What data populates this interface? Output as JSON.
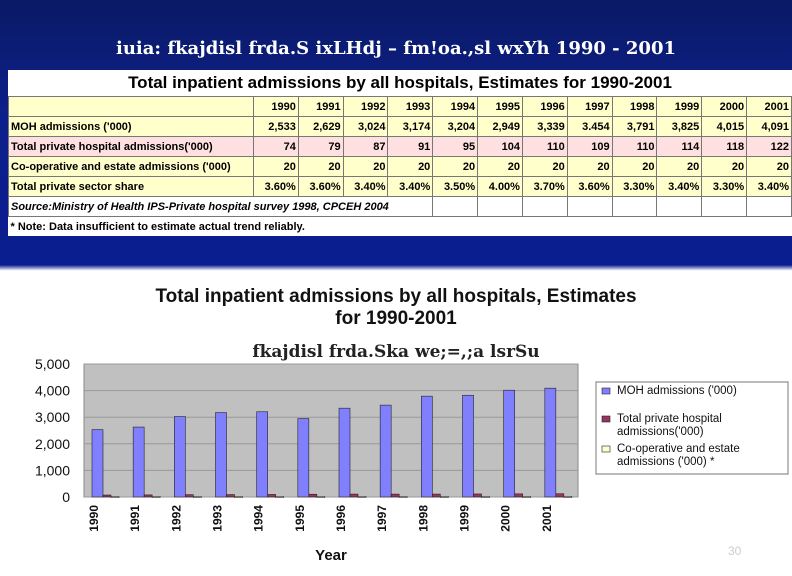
{
  "slide_title": "iuia: fkajdisl frda.S ixLHdj – fm!oa.,sl wxYh 1990 - 2001",
  "table": {
    "title": "Total inpatient admissions by all hospitals, Estimates for 1990-2001",
    "years": [
      "1990",
      "1991",
      "1992",
      "1993",
      "1994",
      "1995",
      "1996",
      "1997",
      "1998",
      "1999",
      "2000",
      "2001"
    ],
    "rows": [
      {
        "label": "MOH admissions ('000)",
        "values": [
          "2,533",
          "2,629",
          "3,024",
          "3,174",
          "3,204",
          "2,949",
          "3,339",
          "3.454",
          "3,791",
          "3,825",
          "4,015",
          "4,091"
        ]
      },
      {
        "label": "Total private hospital admissions('000)",
        "values": [
          "74",
          "79",
          "87",
          "91",
          "95",
          "104",
          "110",
          "109",
          "110",
          "114",
          "118",
          "122"
        ]
      },
      {
        "label": "Co-operative and estate admissions ('000)",
        "values": [
          "20",
          "20",
          "20",
          "20",
          "20",
          "20",
          "20",
          "20",
          "20",
          "20",
          "20",
          "20"
        ]
      },
      {
        "label": "Total private sector share",
        "values": [
          "3.60%",
          "3.60%",
          "3.40%",
          "3.40%",
          "3.50%",
          "4.00%",
          "3.70%",
          "3.60%",
          "3.30%",
          "3.40%",
          "3.30%",
          "3.40%"
        ]
      }
    ],
    "source": "Source:Ministry of Health IPS-Private hospital survey 1998, CPCEH 2004",
    "note": "* Note: Data insufficient to estimate actual trend reliably."
  },
  "chart_data": {
    "type": "bar",
    "title_line1": "Total inpatient admissions by all hospitals, Estimates",
    "title_line2": "for 1990-2001",
    "overlay_title": "fkajdisl frda.Ska we;=,;a lsrSu",
    "xlabel": "Year",
    "categories": [
      "1990",
      "1991",
      "1992",
      "1993",
      "1994",
      "1995",
      "1996",
      "1997",
      "1998",
      "1999",
      "2000",
      "2001"
    ],
    "ylim": [
      0,
      5000
    ],
    "yticks": [
      "0",
      "1,000",
      "2,000",
      "3,000",
      "4,000",
      "5,000"
    ],
    "series": [
      {
        "name": "MOH admissions ('000)",
        "color": "#8080ff",
        "values": [
          2533,
          2629,
          3024,
          3174,
          3204,
          2949,
          3339,
          3454,
          3791,
          3825,
          4015,
          4091
        ]
      },
      {
        "name": "Total private hospital admissions('000)",
        "color": "#993366",
        "values": [
          74,
          79,
          87,
          91,
          95,
          104,
          110,
          109,
          110,
          114,
          118,
          122
        ]
      },
      {
        "name": "Co-operative and estate admissions ('000) *",
        "color": "#ffffcc",
        "values": [
          20,
          20,
          20,
          20,
          20,
          20,
          20,
          20,
          20,
          20,
          20,
          20
        ]
      }
    ],
    "legend_position": "right"
  },
  "slide_number": "30"
}
